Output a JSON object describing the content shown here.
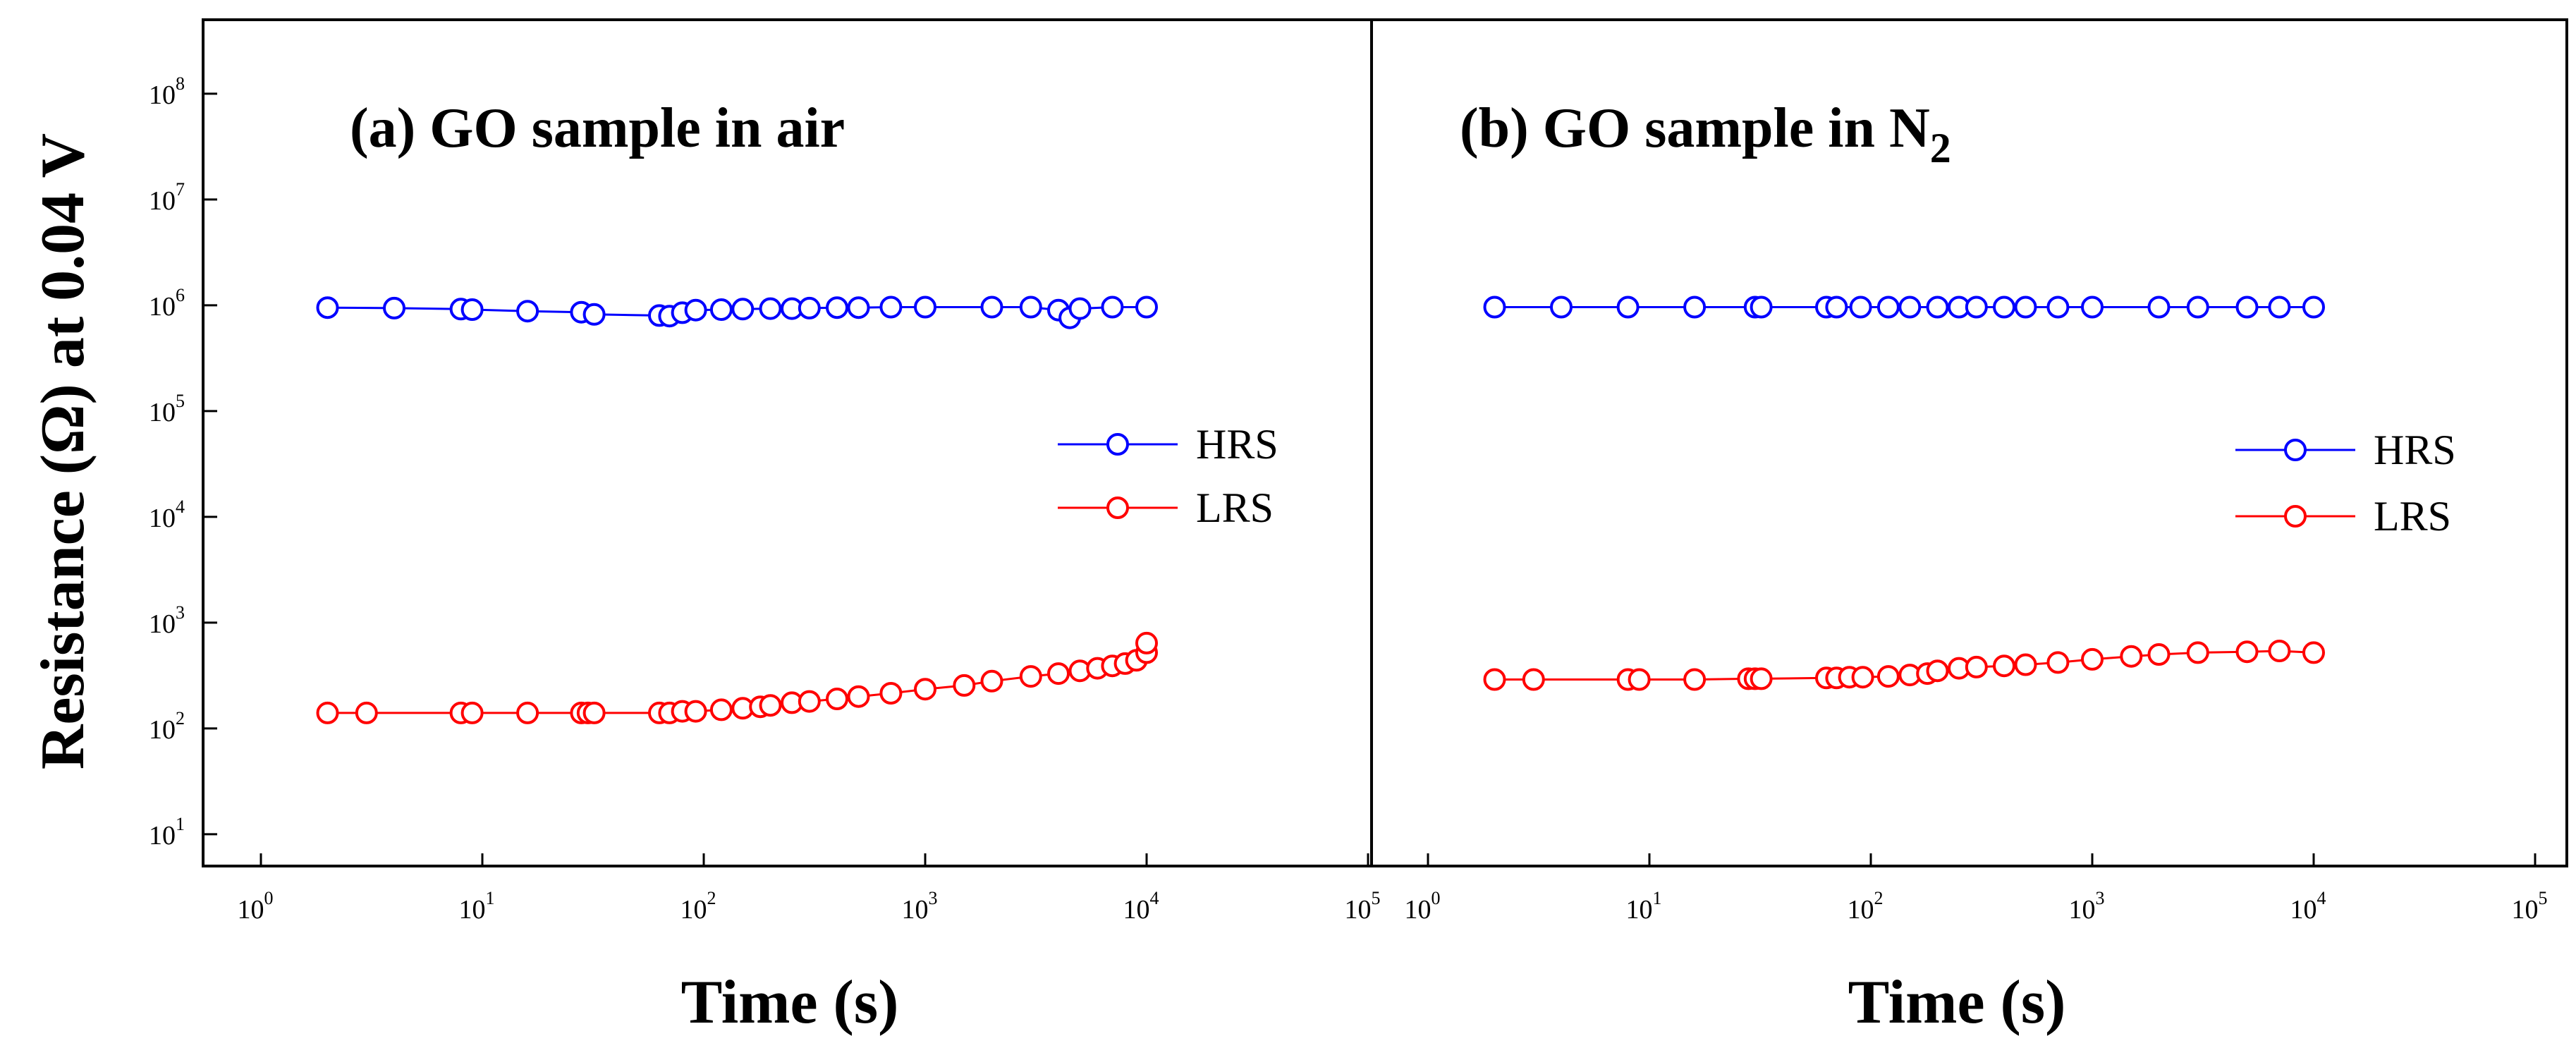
{
  "chart_data": {
    "type": "scatter",
    "ylabel": "Resistance (Ω) at 0.04 V",
    "xlabel": "Time (s)",
    "xscale": "log",
    "yscale": "log",
    "xlim": [
      1,
      100000
    ],
    "ylim": [
      5,
      500000000
    ],
    "x_ticks": [
      {
        "base": "10",
        "exp": "0",
        "value": 1
      },
      {
        "base": "10",
        "exp": "1",
        "value": 10
      },
      {
        "base": "10",
        "exp": "2",
        "value": 100
      },
      {
        "base": "10",
        "exp": "3",
        "value": 1000
      },
      {
        "base": "10",
        "exp": "4",
        "value": 10000
      },
      {
        "base": "10",
        "exp": "5",
        "value": 100000
      }
    ],
    "y_ticks": [
      {
        "base": "10",
        "exp": "1",
        "value": 10
      },
      {
        "base": "10",
        "exp": "2",
        "value": 100
      },
      {
        "base": "10",
        "exp": "3",
        "value": 1000
      },
      {
        "base": "10",
        "exp": "4",
        "value": 10000
      },
      {
        "base": "10",
        "exp": "5",
        "value": 100000
      },
      {
        "base": "10",
        "exp": "6",
        "value": 1000000
      },
      {
        "base": "10",
        "exp": "7",
        "value": 10000000
      },
      {
        "base": "10",
        "exp": "8",
        "value": 100000000
      }
    ],
    "panels": [
      {
        "title": "(a) GO sample in air",
        "title_sub": "",
        "legend_position": "right",
        "legend": [
          "HRS",
          "LRS"
        ],
        "series": [
          {
            "name": "HRS",
            "color": "#0000ff",
            "x": [
              2,
              4,
              8,
              9,
              16,
              28,
              32,
              63,
              70,
              80,
              92,
              120,
              150,
              200,
              250,
              300,
              400,
              500,
              700,
              1000,
              2000,
              3000,
              4000,
              4500,
              5000,
              7000,
              10000
            ],
            "y": [
              950000,
              940000,
              920000,
              910000,
              880000,
              860000,
              820000,
              800000,
              790000,
              850000,
              900000,
              910000,
              920000,
              930000,
              930000,
              940000,
              950000,
              950000,
              960000,
              960000,
              960000,
              960000,
              900000,
              760000,
              930000,
              960000,
              960000
            ]
          },
          {
            "name": "LRS",
            "color": "#ff0000",
            "x": [
              2,
              3,
              8,
              9,
              16,
              28,
              30,
              32,
              63,
              70,
              80,
              92,
              120,
              150,
              180,
              200,
              250,
              300,
              400,
              500,
              700,
              1000,
              1500,
              2000,
              3000,
              4000,
              5000,
              6000,
              7000,
              8000,
              9000,
              10000,
              10000
            ],
            "y": [
              140,
              140,
              140,
              140,
              140,
              140,
              140,
              140,
              140,
              140,
              145,
              145,
              150,
              155,
              160,
              165,
              175,
              180,
              190,
              200,
              215,
              235,
              255,
              280,
              310,
              330,
              350,
              370,
              390,
              410,
              440,
              520,
              640
            ]
          }
        ]
      },
      {
        "title": "(b) GO sample in N",
        "title_sub": "2",
        "legend_position": "right",
        "legend": [
          "HRS",
          "LRS"
        ],
        "series": [
          {
            "name": "HRS",
            "color": "#0000ff",
            "x": [
              2,
              4,
              8,
              16,
              30,
              32,
              63,
              70,
              90,
              120,
              150,
              200,
              250,
              300,
              400,
              500,
              700,
              1000,
              2000,
              3000,
              5000,
              7000,
              10000
            ],
            "y": [
              960000,
              960000,
              960000,
              960000,
              960000,
              960000,
              960000,
              960000,
              960000,
              960000,
              960000,
              960000,
              960000,
              960000,
              960000,
              960000,
              960000,
              960000,
              960000,
              960000,
              960000,
              960000,
              960000
            ]
          },
          {
            "name": "LRS",
            "color": "#ff0000",
            "x": [
              2,
              3,
              8,
              9,
              16,
              28,
              30,
              32,
              63,
              70,
              80,
              92,
              120,
              150,
              180,
              200,
              250,
              300,
              400,
              500,
              700,
              1000,
              1500,
              2000,
              3000,
              5000,
              7000,
              10000
            ],
            "y": [
              290,
              290,
              290,
              290,
              290,
              295,
              295,
              295,
              300,
              300,
              305,
              305,
              310,
              320,
              330,
              350,
              370,
              380,
              390,
              400,
              420,
              450,
              480,
              500,
              520,
              530,
              540,
              520
            ]
          }
        ]
      }
    ]
  }
}
